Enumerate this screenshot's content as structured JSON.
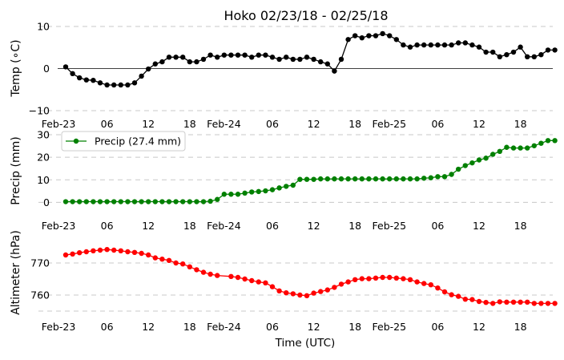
{
  "figure": {
    "title": "Hoko 02/23/18 - 02/25/18",
    "xlabel": "Time (UTC)"
  },
  "chart_data": [
    {
      "type": "line",
      "ylabel": "Temp (∘C)",
      "ylim": [
        -10,
        10
      ],
      "yticks": [
        "10",
        "0",
        "−10"
      ],
      "zero_line": true,
      "x_tick_labels": [
        "Feb-23",
        "06",
        "12",
        "18",
        "Feb-24",
        "06",
        "12",
        "18",
        "Feb-25",
        "06",
        "12",
        "18"
      ],
      "grid": "horizontal dashed",
      "color": "#000000",
      "series": [
        {
          "x_hours": [
            0,
            1,
            2,
            3,
            4,
            5,
            6,
            7,
            8,
            9,
            10,
            11,
            12,
            13,
            14,
            15,
            16,
            17,
            18,
            19,
            20,
            21,
            22,
            23,
            24,
            25,
            26,
            27,
            28,
            29,
            30,
            31,
            32,
            33,
            34,
            35,
            36,
            37,
            38,
            39,
            40,
            41,
            42,
            43,
            44,
            45,
            46,
            47,
            48,
            49,
            50,
            51,
            52,
            53,
            54,
            55,
            56,
            57,
            58,
            59,
            60,
            61,
            62,
            63,
            64,
            65,
            66,
            67,
            68,
            69,
            70,
            71
          ],
          "values": [
            0.4,
            -1.2,
            -2.2,
            -2.7,
            -2.8,
            -3.4,
            -3.9,
            -3.9,
            -3.9,
            -3.9,
            -3.4,
            -1.8,
            -0.1,
            1.1,
            1.6,
            2.7,
            2.7,
            2.7,
            1.6,
            1.6,
            2.2,
            3.2,
            2.7,
            3.2,
            3.2,
            3.2,
            3.2,
            2.7,
            3.2,
            3.2,
            2.7,
            2.2,
            2.7,
            2.2,
            2.2,
            2.7,
            2.2,
            1.6,
            1.1,
            -0.6,
            2.2,
            6.9,
            7.8,
            7.3,
            7.8,
            7.8,
            8.3,
            7.8,
            6.9,
            5.6,
            5.1,
            5.6,
            5.6,
            5.6,
            5.6,
            5.6,
            5.6,
            6.1,
            6.1,
            5.6,
            5.1,
            3.9,
            3.9,
            2.8,
            3.3,
            3.9,
            5.1,
            2.8,
            2.8,
            3.3,
            4.4,
            4.4
          ]
        }
      ]
    },
    {
      "type": "line",
      "ylabel": "Precip (mm)",
      "ylim": [
        -2,
        30
      ],
      "yticks": [
        "30",
        "20",
        "10",
        "0"
      ],
      "x_tick_labels": [
        "Feb-23",
        "06",
        "12",
        "18",
        "Feb-24",
        "06",
        "12",
        "18",
        "Feb-25",
        "06",
        "12",
        "18"
      ],
      "grid": "horizontal dashed",
      "legend": "upper left",
      "color": "#008000",
      "series": [
        {
          "name": "Precip (27.4 mm)",
          "x_hours": [
            0,
            1,
            2,
            3,
            4,
            5,
            6,
            7,
            8,
            9,
            10,
            11,
            12,
            13,
            14,
            15,
            16,
            17,
            18,
            19,
            20,
            21,
            22,
            23,
            24,
            25,
            26,
            27,
            28,
            29,
            30,
            31,
            32,
            33,
            34,
            35,
            36,
            37,
            38,
            39,
            40,
            41,
            42,
            43,
            44,
            45,
            46,
            47,
            48,
            49,
            50,
            51,
            52,
            53,
            54,
            55,
            56,
            57,
            58,
            59,
            60,
            61,
            62,
            63,
            64,
            65,
            66,
            67,
            68,
            69,
            70,
            71
          ],
          "values": [
            0.3,
            0.3,
            0.3,
            0.3,
            0.3,
            0.3,
            0.3,
            0.3,
            0.3,
            0.3,
            0.3,
            0.3,
            0.3,
            0.3,
            0.3,
            0.3,
            0.3,
            0.3,
            0.3,
            0.3,
            0.3,
            0.5,
            1.3,
            3.6,
            3.6,
            3.6,
            4.1,
            4.6,
            4.8,
            5.1,
            5.6,
            6.4,
            7.1,
            7.6,
            10.2,
            10.2,
            10.2,
            10.4,
            10.4,
            10.4,
            10.4,
            10.4,
            10.4,
            10.4,
            10.4,
            10.4,
            10.4,
            10.4,
            10.4,
            10.4,
            10.4,
            10.4,
            10.7,
            10.9,
            11.4,
            11.4,
            12.4,
            14.7,
            16.3,
            17.5,
            18.8,
            19.6,
            21.3,
            22.6,
            24.4,
            24.1,
            24.1,
            24.1,
            25.1,
            26.2,
            27.4,
            27.4
          ]
        }
      ]
    },
    {
      "type": "line",
      "ylabel": "Altimeter (hPa)",
      "ylim": [
        755,
        778
      ],
      "yticks": [
        "770",
        "760"
      ],
      "x_tick_labels": [
        "Feb-23",
        "06",
        "12",
        "18",
        "Feb-24",
        "06",
        "12",
        "18",
        "Feb-25",
        "06",
        "12",
        "18"
      ],
      "grid": "horizontal dashed",
      "color": "#ff0000",
      "series": [
        {
          "x_hours": [
            0,
            1,
            2,
            3,
            4,
            5,
            6,
            7,
            8,
            9,
            10,
            11,
            12,
            13,
            14,
            15,
            16,
            17,
            18,
            19,
            20,
            21,
            22,
            24,
            25,
            26,
            27,
            28,
            29,
            30,
            31,
            32,
            33,
            34,
            35,
            36,
            37,
            38,
            39,
            40,
            41,
            42,
            43,
            44,
            45,
            46,
            47,
            48,
            49,
            50,
            51,
            52,
            53,
            54,
            55,
            56,
            57,
            58,
            59,
            60,
            61,
            62,
            63,
            64,
            65,
            66,
            67,
            68,
            69,
            70,
            71
          ],
          "values": [
            772.5,
            772.8,
            773.2,
            773.5,
            773.8,
            774.0,
            774.2,
            774.0,
            773.8,
            773.5,
            773.3,
            773.0,
            772.5,
            771.6,
            771.2,
            770.8,
            770.0,
            769.7,
            768.8,
            767.9,
            767.1,
            766.5,
            766.1,
            765.8,
            765.5,
            765.0,
            764.5,
            764.1,
            763.8,
            762.6,
            761.3,
            760.7,
            760.4,
            760.0,
            759.8,
            760.6,
            761.1,
            761.6,
            762.4,
            763.4,
            764.1,
            764.8,
            765.1,
            765.1,
            765.3,
            765.5,
            765.5,
            765.3,
            765.1,
            764.8,
            764.1,
            763.6,
            763.2,
            762.2,
            761.0,
            760.1,
            759.6,
            758.7,
            758.6,
            758.0,
            757.7,
            757.4,
            757.9,
            757.8,
            757.8,
            757.8,
            757.8,
            757.4,
            757.4,
            757.4,
            757.4
          ]
        }
      ]
    }
  ]
}
